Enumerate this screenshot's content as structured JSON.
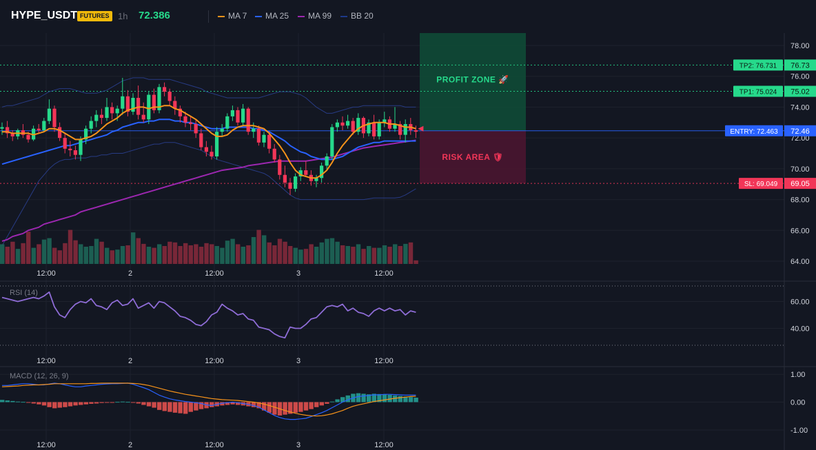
{
  "header": {
    "symbol": "HYPE_USDT",
    "badge": "FUTURES",
    "timeframe": "1h",
    "last_price": "72.386",
    "legend": [
      {
        "label": "MA 7",
        "color": "#f7931a"
      },
      {
        "label": "MA 25",
        "color": "#2962ff"
      },
      {
        "label": "MA 99",
        "color": "#9c27b0"
      },
      {
        "label": "BB 20",
        "color": "#1e3a8a"
      }
    ]
  },
  "zones": {
    "profit_label": "PROFIT ZONE 🚀",
    "risk_label": "RISK AREA 🛡"
  },
  "price_lines": [
    {
      "name": "tp2",
      "tag": "TP2: 76.731",
      "axis": "76.73",
      "value": 76.731,
      "color": "#26d98b",
      "style": "dotted"
    },
    {
      "name": "tp1",
      "tag": "TP1: 75.024",
      "axis": "75.02",
      "value": 75.024,
      "color": "#26d98b",
      "style": "dotted"
    },
    {
      "name": "entry",
      "tag": "ENTRY: 72.463",
      "axis": "72.46",
      "value": 72.463,
      "color": "#2962ff",
      "style": "solid"
    },
    {
      "name": "sl",
      "tag": "SL: 69.049",
      "axis": "69.05",
      "value": 69.049,
      "color": "#f23658",
      "style": "dotted"
    }
  ],
  "time_labels": [
    "12:00",
    "2",
    "12:00",
    "3",
    "12:00"
  ],
  "rsi": {
    "label": "RSI (14)",
    "ticks": [
      "60.00",
      "40.00"
    ]
  },
  "macd": {
    "label": "MACD (12, 26, 9)",
    "ticks": [
      "1.00",
      "0.00",
      "-1.00"
    ]
  },
  "chart_data": {
    "type": "candlestick",
    "price_axis": {
      "ylim": [
        63.5,
        78.5
      ],
      "ticks": [
        64,
        66,
        68,
        70,
        72,
        74,
        76,
        78
      ]
    },
    "candles": [
      [
        72.6,
        73.0,
        72.2,
        72.7
      ],
      [
        72.7,
        73.1,
        72.0,
        72.3
      ],
      [
        72.3,
        72.5,
        71.8,
        72.1
      ],
      [
        72.1,
        72.6,
        71.9,
        72.5
      ],
      [
        72.5,
        72.9,
        72.0,
        72.2
      ],
      [
        72.2,
        72.4,
        71.7,
        71.9
      ],
      [
        71.9,
        72.8,
        71.8,
        72.6
      ],
      [
        72.6,
        72.9,
        72.3,
        72.5
      ],
      [
        72.5,
        73.3,
        72.4,
        73.1
      ],
      [
        73.1,
        74.5,
        72.9,
        73.9
      ],
      [
        73.9,
        74.1,
        72.4,
        72.7
      ],
      [
        72.7,
        73.0,
        71.8,
        72.0
      ],
      [
        72.0,
        72.3,
        71.0,
        71.3
      ],
      [
        71.3,
        71.8,
        70.8,
        71.2
      ],
      [
        71.2,
        71.5,
        70.6,
        70.9
      ],
      [
        70.9,
        72.1,
        70.5,
        71.9
      ],
      [
        71.9,
        72.8,
        71.6,
        72.6
      ],
      [
        72.6,
        73.4,
        72.3,
        73.1
      ],
      [
        73.1,
        73.8,
        72.7,
        73.5
      ],
      [
        73.5,
        73.9,
        72.9,
        73.3
      ],
      [
        73.3,
        74.6,
        73.1,
        74.0
      ],
      [
        74.0,
        74.3,
        73.2,
        73.6
      ],
      [
        73.6,
        74.1,
        73.1,
        73.9
      ],
      [
        73.9,
        75.9,
        73.5,
        74.7
      ],
      [
        74.7,
        75.1,
        73.4,
        73.7
      ],
      [
        73.7,
        74.9,
        73.5,
        74.6
      ],
      [
        74.6,
        75.4,
        73.2,
        73.5
      ],
      [
        73.5,
        74.3,
        73.0,
        73.2
      ],
      [
        73.2,
        75.0,
        72.9,
        74.8
      ],
      [
        74.8,
        75.2,
        73.6,
        73.8
      ],
      [
        73.8,
        75.5,
        73.6,
        75.3
      ],
      [
        75.3,
        75.6,
        74.7,
        75.0
      ],
      [
        75.0,
        75.2,
        74.1,
        74.4
      ],
      [
        74.4,
        74.7,
        73.5,
        73.9
      ],
      [
        73.9,
        74.1,
        73.0,
        73.4
      ],
      [
        73.4,
        73.7,
        72.7,
        73.0
      ],
      [
        73.0,
        73.4,
        72.5,
        72.9
      ],
      [
        72.9,
        73.2,
        72.0,
        72.3
      ],
      [
        72.3,
        72.6,
        71.2,
        71.4
      ],
      [
        71.4,
        71.8,
        70.8,
        71.1
      ],
      [
        71.1,
        71.5,
        70.6,
        70.8
      ],
      [
        70.8,
        72.7,
        70.6,
        72.4
      ],
      [
        72.4,
        72.9,
        72.1,
        72.6
      ],
      [
        72.6,
        73.6,
        72.4,
        73.4
      ],
      [
        73.4,
        74.1,
        73.1,
        73.8
      ],
      [
        73.8,
        74.0,
        72.8,
        73.0
      ],
      [
        73.0,
        74.2,
        72.8,
        73.9
      ],
      [
        73.9,
        74.0,
        72.2,
        72.4
      ],
      [
        72.4,
        73.0,
        72.0,
        72.6
      ],
      [
        72.6,
        72.8,
        71.5,
        71.7
      ],
      [
        71.7,
        72.4,
        71.4,
        72.2
      ],
      [
        72.2,
        72.4,
        71.0,
        71.3
      ],
      [
        71.3,
        71.6,
        70.4,
        70.6
      ],
      [
        70.6,
        70.9,
        69.3,
        69.6
      ],
      [
        69.6,
        70.2,
        68.8,
        69.1
      ],
      [
        69.1,
        69.4,
        68.3,
        68.7
      ],
      [
        68.7,
        69.7,
        68.5,
        69.5
      ],
      [
        69.5,
        70.1,
        69.2,
        69.9
      ],
      [
        69.9,
        70.5,
        69.5,
        69.6
      ],
      [
        69.6,
        69.9,
        68.9,
        69.2
      ],
      [
        69.2,
        69.6,
        68.8,
        69.4
      ],
      [
        69.4,
        70.4,
        69.1,
        70.2
      ],
      [
        70.2,
        71.0,
        69.9,
        70.8
      ],
      [
        70.8,
        72.9,
        70.6,
        72.7
      ],
      [
        72.7,
        73.2,
        72.4,
        73.0
      ],
      [
        73.0,
        73.4,
        72.5,
        72.8
      ],
      [
        72.8,
        73.5,
        72.6,
        73.1
      ],
      [
        73.1,
        73.3,
        72.2,
        72.4
      ],
      [
        72.4,
        73.6,
        72.2,
        73.3
      ],
      [
        73.3,
        73.4,
        72.0,
        72.3
      ],
      [
        72.3,
        73.2,
        72.1,
        73.0
      ],
      [
        73.0,
        73.5,
        71.9,
        72.1
      ],
      [
        72.1,
        73.2,
        71.9,
        73.0
      ],
      [
        73.0,
        73.7,
        72.7,
        73.2
      ],
      [
        73.2,
        73.4,
        72.4,
        72.6
      ],
      [
        72.6,
        74.0,
        72.4,
        72.9
      ],
      [
        72.9,
        73.1,
        71.9,
        72.2
      ],
      [
        72.2,
        73.2,
        71.7,
        72.9
      ],
      [
        72.9,
        73.3,
        72.2,
        72.5
      ],
      [
        72.5,
        72.8,
        72.0,
        72.4
      ]
    ],
    "volume_max": 1.0,
    "volume": [
      0.55,
      0.48,
      0.62,
      0.42,
      0.58,
      0.9,
      0.45,
      0.55,
      0.68,
      0.72,
      0.45,
      0.38,
      0.58,
      0.95,
      0.66,
      0.55,
      0.48,
      0.5,
      0.7,
      0.62,
      0.45,
      0.38,
      0.4,
      0.5,
      0.52,
      0.88,
      0.72,
      0.56,
      0.48,
      0.45,
      0.55,
      0.5,
      0.62,
      0.6,
      0.5,
      0.58,
      0.52,
      0.55,
      0.48,
      0.58,
      0.55,
      0.5,
      0.45,
      0.65,
      0.7,
      0.55,
      0.48,
      0.52,
      0.75,
      0.95,
      0.8,
      0.6,
      0.52,
      0.7,
      0.62,
      0.5,
      0.45,
      0.4,
      0.42,
      0.55,
      0.48,
      0.6,
      0.7,
      0.72,
      0.62,
      0.52,
      0.5,
      0.48,
      0.55,
      0.42,
      0.5,
      0.45,
      0.45,
      0.52,
      0.48,
      0.55,
      0.5,
      0.56,
      0.6,
      0.1
    ],
    "ma7": [
      72.4,
      72.4,
      72.3,
      72.3,
      72.3,
      72.3,
      72.2,
      72.3,
      72.4,
      72.6,
      72.6,
      72.5,
      72.3,
      72.1,
      71.9,
      71.9,
      72.0,
      72.1,
      72.3,
      72.6,
      72.9,
      73.1,
      73.3,
      73.6,
      73.8,
      73.9,
      74.0,
      74.0,
      73.9,
      74.0,
      74.0,
      74.1,
      74.1,
      73.9,
      73.8,
      73.6,
      73.4,
      73.2,
      72.9,
      72.6,
      72.3,
      72.1,
      72.1,
      72.2,
      72.5,
      72.7,
      72.8,
      72.8,
      72.8,
      72.7,
      72.6,
      72.3,
      71.9,
      71.5,
      71.0,
      70.4,
      69.9,
      69.6,
      69.5,
      69.4,
      69.4,
      69.6,
      69.9,
      70.4,
      71.0,
      71.5,
      71.9,
      72.3,
      72.6,
      72.8,
      72.9,
      73.0,
      73.0,
      73.0,
      72.9,
      72.9,
      72.8,
      72.7,
      72.7,
      72.6
    ],
    "ma25": [
      70.3,
      70.4,
      70.5,
      70.6,
      70.7,
      70.8,
      70.9,
      71.0,
      71.1,
      71.2,
      71.3,
      71.4,
      71.5,
      71.5,
      71.6,
      71.7,
      71.8,
      71.9,
      72.0,
      72.1,
      72.2,
      72.4,
      72.5,
      72.7,
      72.8,
      72.9,
      73.0,
      73.0,
      73.1,
      73.1,
      73.2,
      73.2,
      73.2,
      73.1,
      73.1,
      73.0,
      73.0,
      72.9,
      72.8,
      72.7,
      72.6,
      72.6,
      72.6,
      72.7,
      72.7,
      72.7,
      72.7,
      72.7,
      72.6,
      72.6,
      72.5,
      72.4,
      72.2,
      72.0,
      71.8,
      71.5,
      71.3,
      71.1,
      71.0,
      70.8,
      70.7,
      70.6,
      70.6,
      70.6,
      70.7,
      70.8,
      71.0,
      71.2,
      71.4,
      71.5,
      71.6,
      71.7,
      71.7,
      71.8,
      71.8,
      71.8,
      71.8,
      71.8,
      71.8,
      71.8
    ],
    "ma99": [
      65.3,
      65.4,
      65.6,
      65.7,
      65.8,
      66.0,
      66.1,
      66.2,
      66.4,
      66.5,
      66.6,
      66.7,
      66.8,
      66.9,
      67.0,
      67.2,
      67.3,
      67.4,
      67.5,
      67.6,
      67.7,
      67.8,
      67.9,
      68.0,
      68.1,
      68.2,
      68.3,
      68.4,
      68.5,
      68.6,
      68.7,
      68.8,
      68.9,
      69.0,
      69.1,
      69.2,
      69.3,
      69.4,
      69.5,
      69.6,
      69.7,
      69.8,
      69.9,
      69.95,
      70.0,
      70.05,
      70.1,
      70.2,
      70.25,
      70.3,
      70.35,
      70.4,
      70.45,
      70.5,
      70.5,
      70.5,
      70.5,
      70.5,
      70.5,
      70.55,
      70.6,
      70.65,
      70.7,
      70.75,
      70.85,
      70.95,
      71.05,
      71.15,
      71.25,
      71.35,
      71.4,
      71.45,
      71.5,
      71.55,
      71.6,
      71.65,
      71.7,
      71.75,
      71.8,
      71.85
    ],
    "bb_upper": [
      74.0,
      74.1,
      74.1,
      74.2,
      74.3,
      74.4,
      74.5,
      74.6,
      74.8,
      75.0,
      75.1,
      75.2,
      75.2,
      75.2,
      75.1,
      75.0,
      74.9,
      74.9,
      74.9,
      75.0,
      75.1,
      75.3,
      75.5,
      75.7,
      75.8,
      75.9,
      75.9,
      75.9,
      75.8,
      75.8,
      75.8,
      75.8,
      75.8,
      75.7,
      75.6,
      75.5,
      75.4,
      75.3,
      75.2,
      75.0,
      74.9,
      74.8,
      74.7,
      74.6,
      74.6,
      74.6,
      74.6,
      74.6,
      74.6,
      74.6,
      74.7,
      74.8,
      74.9,
      75.0,
      75.0,
      75.0,
      74.9,
      74.8,
      74.6,
      74.3,
      74.0,
      73.8,
      73.6,
      73.6,
      73.7,
      73.8,
      73.9,
      74.0,
      74.0,
      74.1,
      74.1,
      74.1,
      74.1,
      74.1,
      74.1,
      74.1,
      74.1,
      74.0,
      74.0,
      74.0
    ],
    "bb_lower": [
      65.0,
      65.6,
      66.2,
      66.8,
      67.4,
      68.0,
      68.6,
      69.2,
      69.6,
      70.0,
      70.3,
      70.5,
      70.6,
      70.6,
      70.7,
      70.7,
      70.7,
      70.8,
      70.8,
      70.9,
      70.9,
      71.0,
      71.0,
      71.0,
      71.1,
      71.2,
      71.3,
      71.4,
      71.5,
      71.6,
      71.6,
      71.7,
      71.7,
      71.7,
      71.6,
      71.5,
      71.4,
      71.3,
      71.2,
      71.0,
      70.8,
      70.6,
      70.5,
      70.4,
      70.3,
      70.2,
      70.1,
      70.0,
      69.9,
      69.8,
      69.7,
      69.5,
      69.2,
      68.9,
      68.6,
      68.3,
      68.1,
      68.0,
      68.0,
      68.0,
      68.0,
      68.0,
      68.0,
      68.0,
      68.0,
      68.0,
      68.0,
      68.0,
      68.0,
      68.0,
      68.05,
      68.1,
      68.1,
      68.1,
      68.1,
      68.1,
      68.15,
      68.3,
      68.5,
      68.7
    ],
    "rsi": [
      63,
      62,
      61,
      60,
      61,
      62,
      63,
      62,
      64,
      67,
      56,
      50,
      48,
      54,
      58,
      60,
      59,
      62,
      57,
      56,
      54,
      59,
      61,
      57,
      58,
      62,
      55,
      57,
      59,
      55,
      60,
      59,
      56,
      53,
      49,
      48,
      46,
      43,
      42,
      45,
      50,
      52,
      58,
      55,
      53,
      50,
      51,
      47,
      46,
      41,
      40,
      39,
      36,
      34,
      33,
      41,
      40,
      40,
      43,
      47,
      48,
      52,
      56,
      57,
      56,
      58,
      53,
      55,
      52,
      51,
      49,
      53,
      55,
      53,
      55,
      53,
      54,
      50,
      53,
      52
    ],
    "rsi_axis": {
      "ylim": [
        28,
        72
      ],
      "ticks": [
        60,
        40
      ],
      "bands": [
        70,
        30
      ]
    },
    "macd_hist": [
      0.08,
      0.06,
      0.04,
      0.02,
      0.01,
      -0.02,
      -0.05,
      -0.08,
      -0.12,
      -0.18,
      -0.22,
      -0.2,
      -0.18,
      -0.15,
      -0.12,
      -0.1,
      -0.08,
      -0.06,
      -0.05,
      -0.03,
      -0.02,
      -0.01,
      0.01,
      0.02,
      0.01,
      -0.02,
      -0.05,
      -0.1,
      -0.15,
      -0.2,
      -0.28,
      -0.32,
      -0.35,
      -0.38,
      -0.4,
      -0.42,
      -0.35,
      -0.3,
      -0.25,
      -0.22,
      -0.18,
      -0.15,
      -0.12,
      -0.1,
      -0.08,
      -0.1,
      -0.12,
      -0.15,
      -0.18,
      -0.22,
      -0.3,
      -0.38,
      -0.45,
      -0.48,
      -0.45,
      -0.42,
      -0.38,
      -0.35,
      -0.3,
      -0.25,
      -0.18,
      -0.12,
      -0.06,
      0.02,
      0.1,
      0.18,
      0.24,
      0.3,
      0.32,
      0.3,
      0.28,
      0.3,
      0.29,
      0.28,
      0.26,
      0.24,
      0.22,
      0.2,
      0.18,
      0.16
    ],
    "macd_line": [
      0.6,
      0.6,
      0.62,
      0.64,
      0.66,
      0.66,
      0.64,
      0.62,
      0.62,
      0.65,
      0.68,
      0.66,
      0.62,
      0.58,
      0.55,
      0.55,
      0.58,
      0.6,
      0.62,
      0.64,
      0.65,
      0.66,
      0.66,
      0.67,
      0.68,
      0.64,
      0.58,
      0.52,
      0.45,
      0.35,
      0.25,
      0.18,
      0.12,
      0.08,
      0.05,
      0.02,
      0.0,
      -0.02,
      -0.05,
      -0.1,
      -0.12,
      -0.08,
      -0.04,
      -0.02,
      0.0,
      -0.02,
      -0.05,
      -0.08,
      -0.12,
      -0.18,
      -0.28,
      -0.38,
      -0.48,
      -0.55,
      -0.6,
      -0.62,
      -0.62,
      -0.6,
      -0.58,
      -0.52,
      -0.45,
      -0.38,
      -0.3,
      -0.2,
      -0.1,
      0.0,
      0.08,
      0.15,
      0.2,
      0.22,
      0.24,
      0.26,
      0.26,
      0.28,
      0.28,
      0.27,
      0.26,
      0.25,
      0.25,
      0.25
    ],
    "macd_signal": [
      0.55,
      0.56,
      0.57,
      0.58,
      0.6,
      0.61,
      0.62,
      0.62,
      0.63,
      0.64,
      0.66,
      0.66,
      0.66,
      0.66,
      0.66,
      0.66,
      0.66,
      0.67,
      0.67,
      0.68,
      0.68,
      0.68,
      0.68,
      0.68,
      0.68,
      0.67,
      0.66,
      0.63,
      0.6,
      0.55,
      0.5,
      0.45,
      0.4,
      0.36,
      0.32,
      0.28,
      0.25,
      0.22,
      0.19,
      0.16,
      0.13,
      0.11,
      0.09,
      0.08,
      0.07,
      0.06,
      0.04,
      0.02,
      0.0,
      -0.03,
      -0.07,
      -0.12,
      -0.18,
      -0.24,
      -0.3,
      -0.35,
      -0.4,
      -0.44,
      -0.47,
      -0.49,
      -0.5,
      -0.49,
      -0.46,
      -0.42,
      -0.36,
      -0.3,
      -0.22,
      -0.15,
      -0.1,
      -0.06,
      -0.02,
      0.02,
      0.05,
      0.08,
      0.11,
      0.14,
      0.16,
      0.18,
      0.2,
      0.21
    ],
    "macd_axis": {
      "ylim": [
        -1.1,
        1.2
      ],
      "ticks": [
        1,
        0,
        -1
      ]
    }
  }
}
